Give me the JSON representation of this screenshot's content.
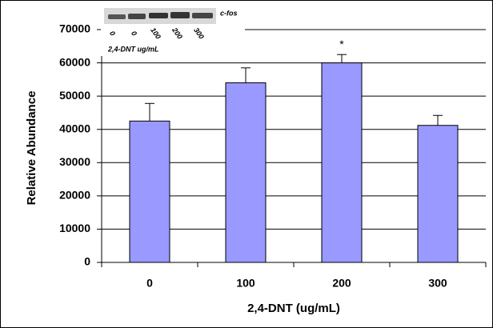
{
  "chart_data": {
    "type": "bar",
    "x_label": "2,4-DNT (ug/mL)",
    "y_label": "Relative Abundance",
    "categories": [
      "0",
      "100",
      "200",
      "300"
    ],
    "values": [
      42500,
      54000,
      60000,
      41200
    ],
    "errors": [
      5300,
      4500,
      2500,
      3000
    ],
    "color": "#9999ff",
    "ylim": [
      0,
      70000
    ],
    "yticks": [
      0,
      10000,
      20000,
      30000,
      40000,
      50000,
      60000,
      70000
    ],
    "grid": true,
    "annotations": [
      {
        "text": "*",
        "category": "200"
      }
    ],
    "inset": {
      "label": "c-fos",
      "lanes": [
        "0",
        "0",
        "100",
        "200",
        "300"
      ],
      "caption": "2,4-DNT ug/mL"
    }
  }
}
